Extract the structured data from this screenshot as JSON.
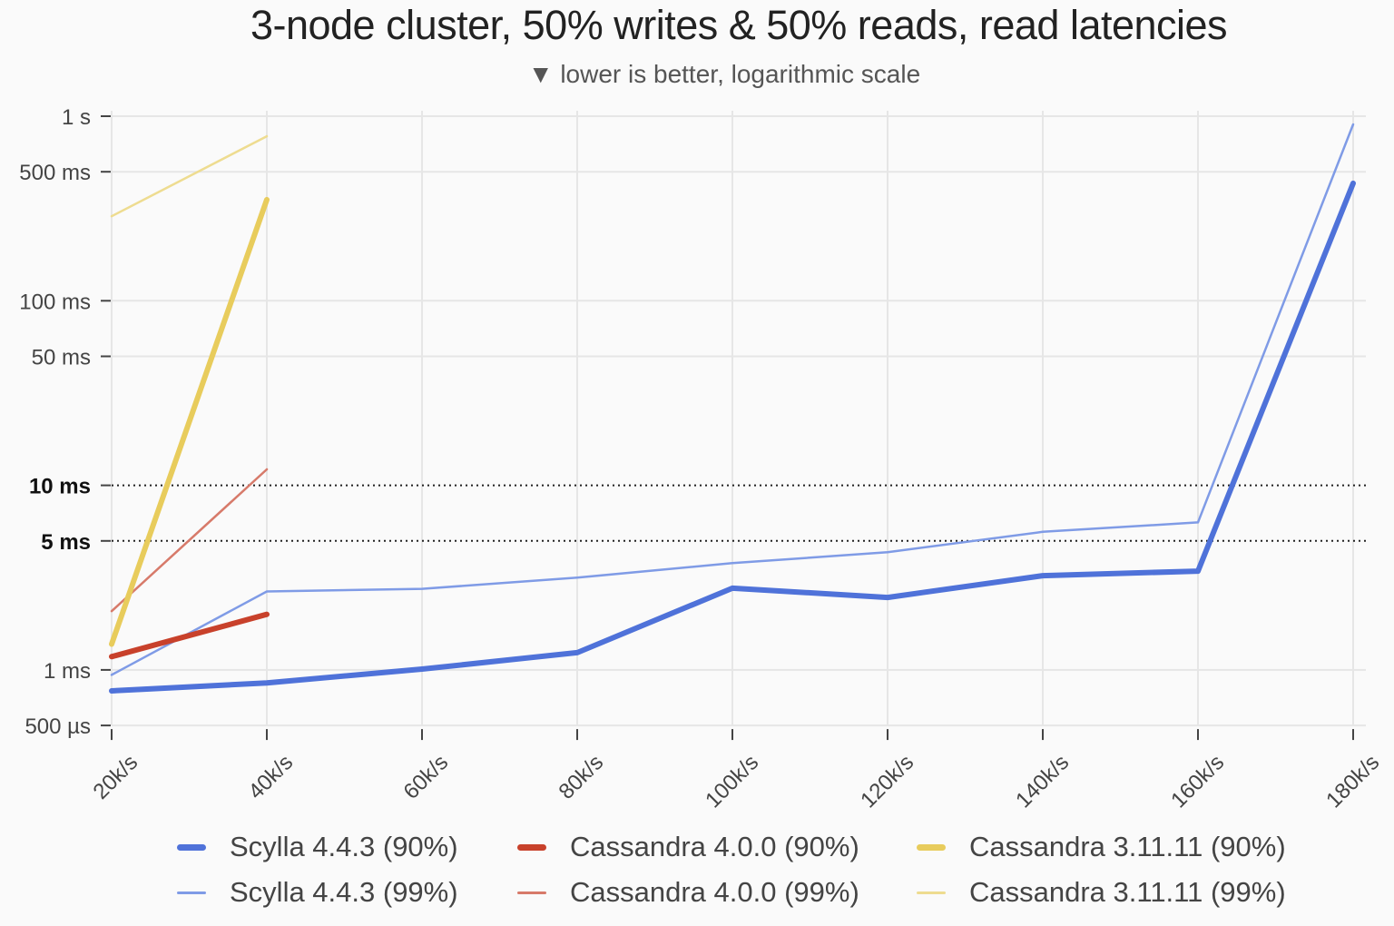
{
  "chart_data": {
    "type": "line",
    "title": "3-node cluster, 50% writes & 50% reads, read latencies",
    "subtitle": "▼ lower is better, logarithmic scale",
    "xlabel": "",
    "ylabel": "",
    "yscale": "log",
    "ylim_ms": [
      0.5,
      1000
    ],
    "grid": true,
    "legend_position": "bottom",
    "categories": [
      "20k/s",
      "40k/s",
      "60k/s",
      "80k/s",
      "100k/s",
      "120k/s",
      "140k/s",
      "160k/s",
      "180k/s"
    ],
    "y_ticks": [
      {
        "label": "1 s",
        "value_ms": 1000,
        "bold": false
      },
      {
        "label": "500 ms",
        "value_ms": 500,
        "bold": false
      },
      {
        "label": "100 ms",
        "value_ms": 100,
        "bold": false
      },
      {
        "label": "50 ms",
        "value_ms": 50,
        "bold": false
      },
      {
        "label": "10 ms",
        "value_ms": 10,
        "bold": true
      },
      {
        "label": "5 ms",
        "value_ms": 5,
        "bold": true
      },
      {
        "label": "1 ms",
        "value_ms": 1,
        "bold": false
      },
      {
        "label": "500 µs",
        "value_ms": 0.5,
        "bold": false
      }
    ],
    "reference_lines_ms": [
      10,
      5
    ],
    "series": [
      {
        "name": "Scylla 4.4.3 (90%)",
        "color": "#4f72d9",
        "width": 6,
        "values_ms": [
          0.77,
          0.85,
          1.01,
          1.24,
          2.77,
          2.47,
          3.24,
          3.43,
          433
        ]
      },
      {
        "name": "Scylla 4.4.3 (99%)",
        "color": "#7f9be6",
        "width": 2.5,
        "values_ms": [
          0.94,
          2.66,
          2.75,
          3.16,
          3.79,
          4.34,
          5.6,
          6.3,
          903
        ]
      },
      {
        "name": "Cassandra 4.0.0 (90%)",
        "color": "#c8412b",
        "width": 6,
        "values_ms": [
          1.18,
          2.0,
          null,
          null,
          null,
          null,
          null,
          null,
          null
        ]
      },
      {
        "name": "Cassandra 4.0.0 (99%)",
        "color": "#d77a6a",
        "width": 2.5,
        "values_ms": [
          2.08,
          12.2,
          null,
          null,
          null,
          null,
          null,
          null,
          null
        ]
      },
      {
        "name": "Cassandra 3.11.11 (90%)",
        "color": "#e8cc5c",
        "width": 6,
        "values_ms": [
          1.38,
          353,
          null,
          null,
          null,
          null,
          null,
          null,
          null
        ]
      },
      {
        "name": "Cassandra 3.11.11 (99%)",
        "color": "#eedc90",
        "width": 2.5,
        "values_ms": [
          287,
          779,
          null,
          null,
          null,
          null,
          null,
          null,
          null
        ]
      }
    ]
  },
  "legend": [
    {
      "label": "Scylla 4.4.3 (90%)"
    },
    {
      "label": "Cassandra 4.0.0 (90%)"
    },
    {
      "label": "Cassandra 3.11.11 (90%)"
    },
    {
      "label": "Scylla 4.4.3 (99%)"
    },
    {
      "label": "Cassandra 4.0.0 (99%)"
    },
    {
      "label": "Cassandra 3.11.11 (99%)"
    }
  ]
}
